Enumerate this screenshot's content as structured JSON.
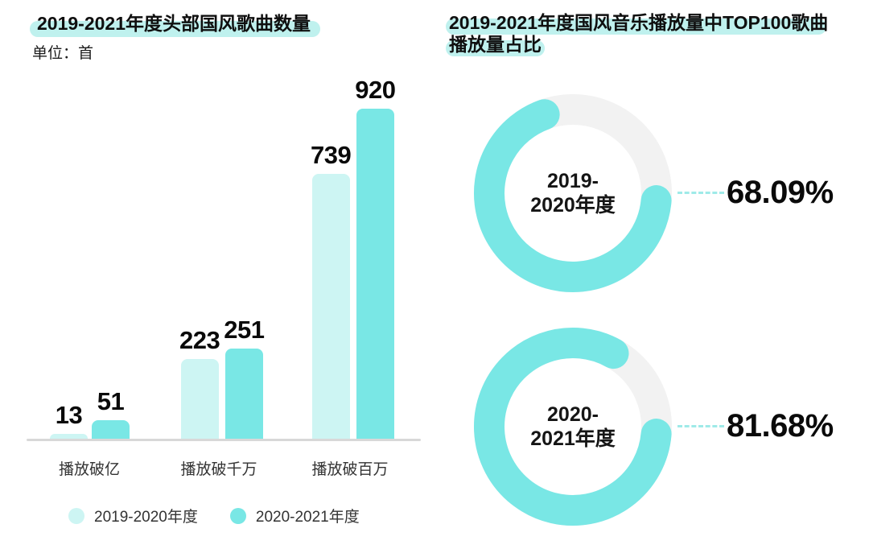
{
  "colors": {
    "teal": "#79e7e5",
    "teal_light": "#cdf5f3",
    "title_highlight": "#bff1ee",
    "donut_track": "#f2f2f2",
    "axis_line": "#d8d8d8",
    "leader_dots": "#9feae8",
    "text_dark": "#0f0f0f",
    "text_label": "#333333"
  },
  "left_panel": {
    "title": "2019-2021年度头部国风歌曲数量",
    "unit_label": "单位：首"
  },
  "right_panel": {
    "title_line1": "2019-2021年度国风音乐播放量中TOP100歌曲",
    "title_line2": "播放量占比"
  },
  "chart_data": [
    {
      "type": "bar",
      "title": "2019-2021年度头部国风歌曲数量",
      "unit": "单位：首",
      "categories": [
        "播放破亿",
        "播放破千万",
        "播放破百万"
      ],
      "series": [
        {
          "name": "2019-2020年度",
          "color": "#cdf5f3",
          "values": [
            13,
            223,
            739
          ]
        },
        {
          "name": "2020-2021年度",
          "color": "#79e7e5",
          "values": [
            51,
            251,
            920
          ]
        }
      ],
      "ylim": [
        0,
        920
      ],
      "value_labels": true,
      "grid": false,
      "legend_position": "bottom"
    },
    {
      "type": "donut",
      "title": "2019-2021年度国风音乐播放量中TOP100歌曲播放量占比",
      "arc_color": "#79e7e5",
      "track_color": "#f2f2f2",
      "items": [
        {
          "label_lines": [
            "2019-",
            "2020年度"
          ],
          "value": 68.09,
          "display": "68.09%"
        },
        {
          "label_lines": [
            "2020-",
            "2021年度"
          ],
          "value": 81.68,
          "display": "81.68%"
        }
      ]
    }
  ]
}
